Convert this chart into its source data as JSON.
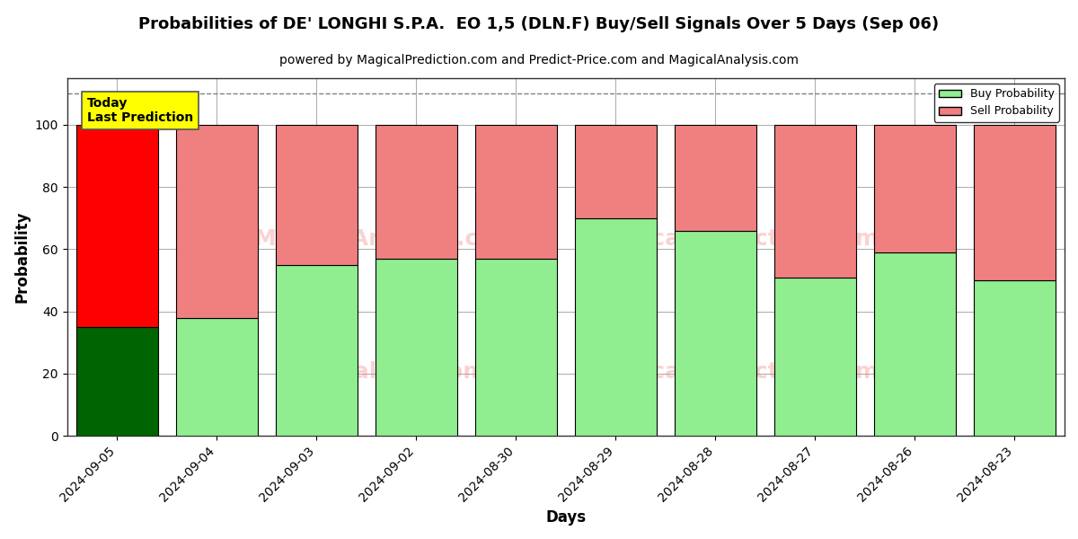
{
  "title": "Probabilities of DE' LONGHI S.P.A.  EO 1,5 (DLN.F) Buy/Sell Signals Over 5 Days (Sep 06)",
  "subtitle": "powered by MagicalPrediction.com and Predict-Price.com and MagicalAnalysis.com",
  "xlabel": "Days",
  "ylabel": "Probability",
  "categories": [
    "2024-09-05",
    "2024-09-04",
    "2024-09-03",
    "2024-09-02",
    "2024-08-30",
    "2024-08-29",
    "2024-08-28",
    "2024-08-27",
    "2024-08-26",
    "2024-08-23"
  ],
  "buy_values": [
    35,
    38,
    55,
    57,
    57,
    70,
    66,
    51,
    59,
    50
  ],
  "sell_values": [
    65,
    62,
    45,
    43,
    43,
    30,
    34,
    49,
    41,
    50
  ],
  "today_buy_color": "#006400",
  "today_sell_color": "#FF0000",
  "normal_buy_color": "#90EE90",
  "normal_sell_color": "#F08080",
  "bar_edge_color": "#000000",
  "today_label": "Today\nLast Prediction",
  "today_label_bg": "#FFFF00",
  "legend_buy_label": "Buy Probability",
  "legend_sell_label": "Sell Probability",
  "ylim_min": 0,
  "ylim_max": 115,
  "yticks": [
    0,
    20,
    40,
    60,
    80,
    100
  ],
  "dashed_line_y": 110,
  "background_color": "#FFFFFF",
  "grid_color": "#AAAAAA"
}
